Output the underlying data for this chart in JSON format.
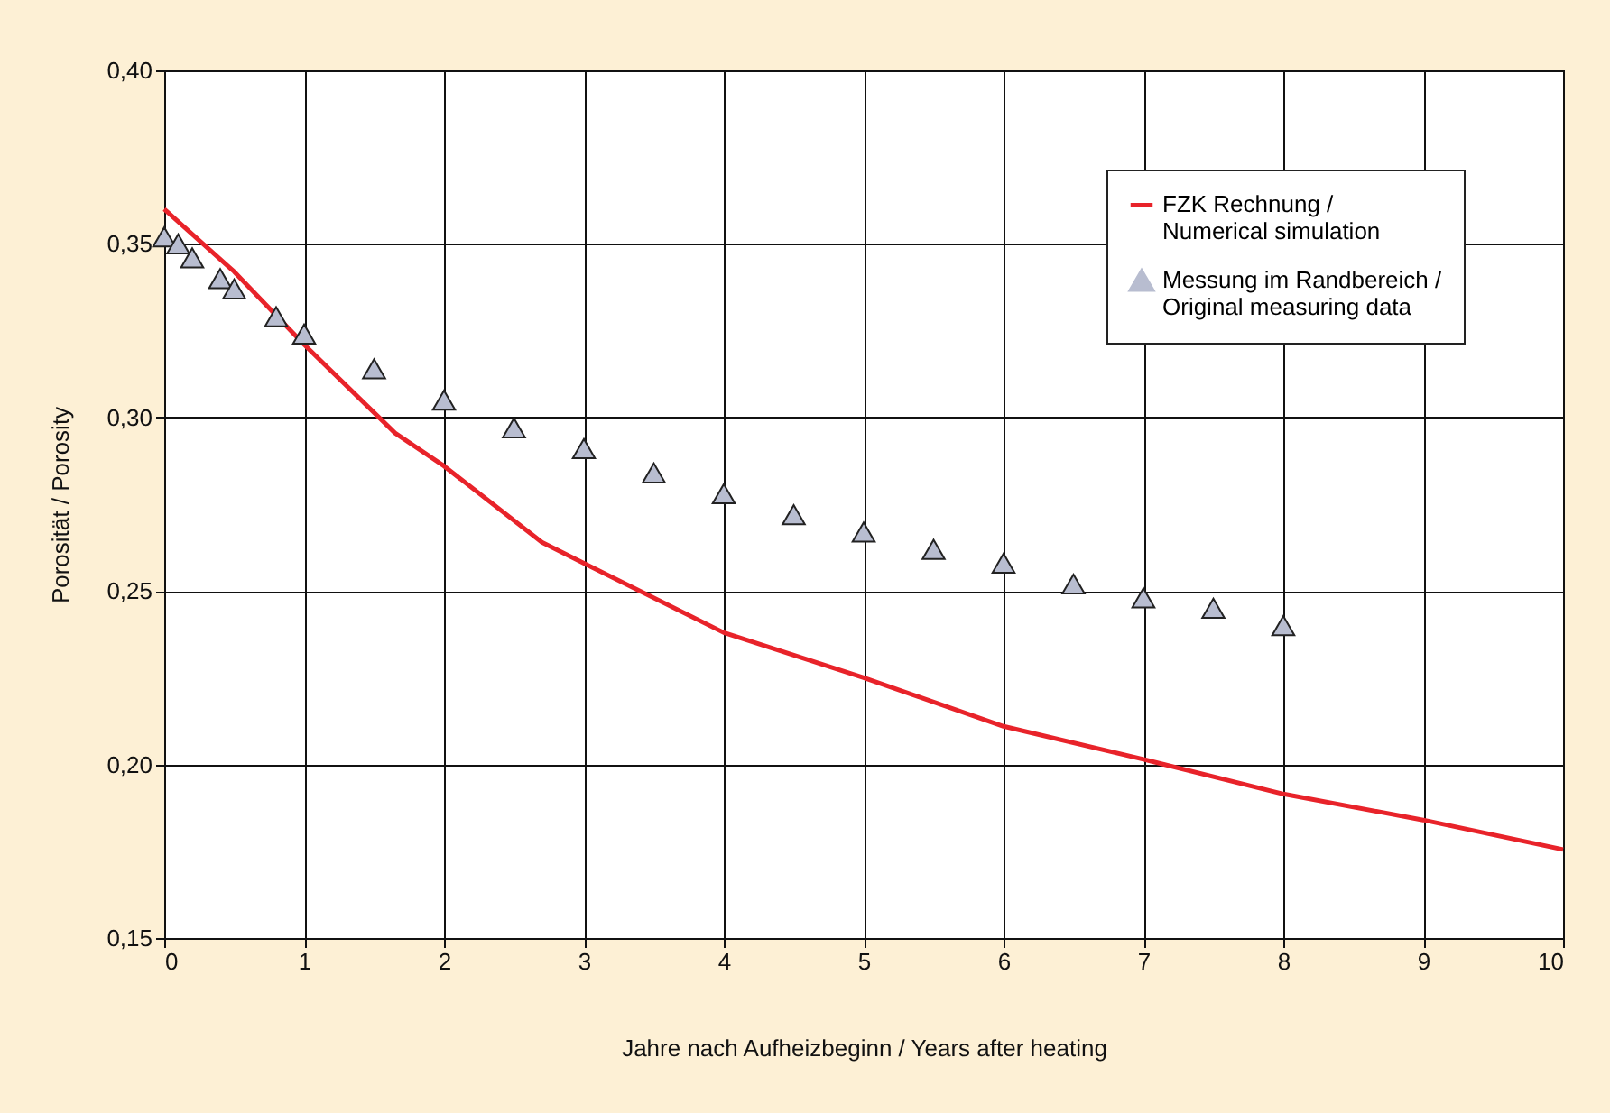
{
  "chart_data": {
    "type": "line",
    "xlabel": "Jahre nach Aufheizbeginn / Years after heating",
    "ylabel": "Porosität / Porosity",
    "xlim": [
      0,
      10
    ],
    "xticks": [
      0,
      1,
      2,
      3,
      4,
      5,
      6,
      7,
      8,
      9,
      10
    ],
    "ylim": [
      0.15,
      0.4
    ],
    "yticks": [
      {
        "value": 0.15,
        "label": "0,15"
      },
      {
        "value": 0.2,
        "label": "0,20"
      },
      {
        "value": 0.25,
        "label": "0,25"
      },
      {
        "value": 0.3,
        "label": "0,30"
      },
      {
        "value": 0.35,
        "label": "0,35"
      },
      {
        "value": 0.4,
        "label": "0,40"
      }
    ],
    "grid": true,
    "legend": "top right",
    "series": [
      {
        "name": "FZK Rechnung / Numerical simulation",
        "color": "#e8232a",
        "line_style": "solid",
        "x": [
          0,
          0.5,
          1,
          1.65,
          2,
          2.7,
          3,
          4,
          5,
          6,
          7,
          8,
          9,
          10
        ],
        "values": [
          0.36,
          0.342,
          0.321,
          0.2955,
          0.286,
          0.264,
          0.258,
          0.238,
          0.225,
          0.211,
          0.2015,
          0.1915,
          0.184,
          0.1755
        ]
      },
      {
        "name": "Messung im Randbereich / Original measuring data",
        "type": "scatter",
        "marker": "triangle",
        "color": "#b8bdd0",
        "x": [
          0,
          0.1,
          0.2,
          0.4,
          0.5,
          0.8,
          1,
          1.5,
          2,
          2.5,
          3,
          3.5,
          4,
          4.5,
          5,
          5.5,
          6,
          6.5,
          7,
          7.5,
          8
        ],
        "values": [
          0.352,
          0.35,
          0.346,
          0.34,
          0.337,
          0.329,
          0.324,
          0.314,
          0.305,
          0.297,
          0.291,
          0.284,
          0.278,
          0.272,
          0.267,
          0.262,
          0.258,
          0.252,
          0.248,
          0.245,
          0.24
        ]
      }
    ]
  }
}
